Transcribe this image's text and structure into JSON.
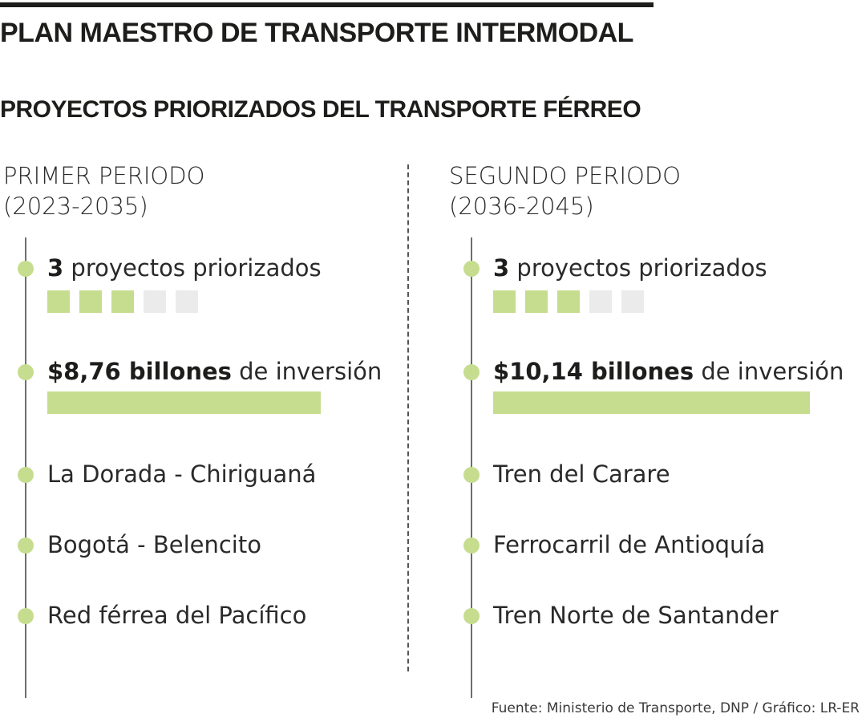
{
  "header": {
    "title": "PLAN MAESTRO DE TRANSPORTE INTERMODAL",
    "subtitle": "PROYECTOS PRIORIZADOS DEL TRANSPORTE FÉRREO"
  },
  "colors": {
    "accent_green": "#c6dd8f",
    "square_inactive": "#ebebeb",
    "text": "#1d1d1b"
  },
  "chart_data": {
    "type": "bar",
    "unit_max_squares": 5,
    "periods": [
      {
        "heading_line1": "PRIMER PERIODO",
        "heading_line2": "(2023-2035)",
        "projects_count": "3",
        "projects_text": "proyectos priorizados",
        "projects_value": 3,
        "investment_label": "$8,76 billones",
        "investment_text": "de inversión",
        "investment_value": 8.76,
        "projects": [
          "La Dorada - Chiriguaná",
          "Bogotá - Belencito",
          "Red férrea del Pacífico"
        ]
      },
      {
        "heading_line1": "SEGUNDO PERIODO",
        "heading_line2": "(2036-2045)",
        "projects_count": "3",
        "projects_text": "proyectos priorizados",
        "projects_value": 3,
        "investment_label": "$10,14 billones",
        "investment_text": "de inversión",
        "investment_value": 10.14,
        "projects": [
          "Tren del Carare",
          "Ferrocarril de Antioquía",
          "Tren Norte de Santander"
        ]
      }
    ]
  },
  "footer": {
    "source": "Fuente: Ministerio de Transporte, DNP / Gráfico: LR-ER"
  }
}
